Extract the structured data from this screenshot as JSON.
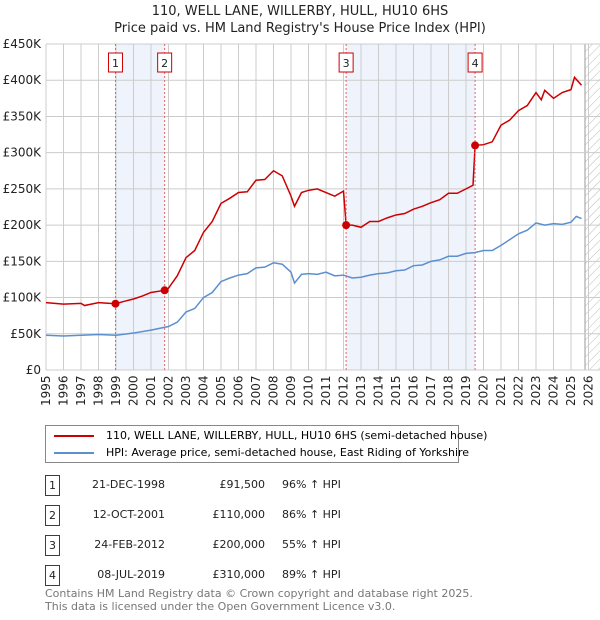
{
  "chart_data": {
    "type": "line",
    "title": "110, WELL LANE, WILLERBY, HULL, HU10 6HS",
    "subtitle": "Price paid vs. HM Land Registry's House Price Index (HPI)",
    "xlim": [
      1995,
      2026
    ],
    "ylim": [
      0,
      450000
    ],
    "y_ticks": [
      0,
      50000,
      100000,
      150000,
      200000,
      250000,
      300000,
      350000,
      400000,
      450000
    ],
    "y_tick_labels": [
      "£0",
      "£50K",
      "£100K",
      "£150K",
      "£200K",
      "£250K",
      "£300K",
      "£350K",
      "£400K",
      "£450K"
    ],
    "x_ticks": [
      "1995",
      "1996",
      "1997",
      "1998",
      "1999",
      "2000",
      "2001",
      "2002",
      "2003",
      "2004",
      "2005",
      "2006",
      "2007",
      "2008",
      "2009",
      "2010",
      "2011",
      "2012",
      "2013",
      "2014",
      "2015",
      "2016",
      "2017",
      "2018",
      "2019",
      "2020",
      "2021",
      "2022",
      "2023",
      "2024",
      "2025",
      "2026"
    ],
    "grid": true,
    "colors": {
      "property": "#cc0000",
      "hpi": "#5b8fd0",
      "shade": "#eef3fc"
    },
    "series": [
      {
        "name": "110, WELL LANE, WILLERBY, HULL, HU10 6HS (semi-detached house)",
        "x": [
          1995,
          1996,
          1997,
          1997.2,
          1998,
          1998.97,
          1999.5,
          2000,
          2000.5,
          2001,
          2001.78,
          2002,
          2002.5,
          2003,
          2003.5,
          2004,
          2004.5,
          2005,
          2005.5,
          2006,
          2006.5,
          2007,
          2007.5,
          2008,
          2008.5,
          2009,
          2009.2,
          2009.6,
          2010,
          2010.5,
          2011,
          2011.5,
          2012,
          2012.15,
          2012.5,
          2013,
          2013.5,
          2014,
          2014.5,
          2015,
          2015.5,
          2016,
          2016.5,
          2017,
          2017.5,
          2018,
          2018.5,
          2019,
          2019.4,
          2019.52,
          2020,
          2020.5,
          2021,
          2021.5,
          2022,
          2022.5,
          2023,
          2023.3,
          2023.5,
          2024,
          2024.5,
          2025,
          2025.2,
          2025.6
        ],
        "values": [
          93,
          91,
          92,
          89,
          93,
          91.5,
          95,
          98,
          102,
          107,
          110,
          113,
          130,
          155,
          165,
          190,
          205,
          230,
          237,
          245,
          246,
          262,
          263,
          275,
          268,
          240,
          226,
          245,
          248,
          250,
          245,
          240,
          247,
          200,
          200,
          197,
          205,
          205,
          210,
          214,
          216,
          222,
          226,
          231,
          235,
          244,
          244,
          250,
          255,
          310,
          311,
          315,
          338,
          345,
          358,
          365,
          383,
          373,
          386,
          375,
          383,
          387,
          404,
          393
        ]
      },
      {
        "name": "HPI: Average price, semi-detached house, East Riding of Yorkshire",
        "x": [
          1995,
          1996,
          1997,
          1998,
          1999,
          2000,
          2001,
          2002,
          2002.5,
          2003,
          2003.5,
          2004,
          2004.5,
          2005,
          2005.5,
          2006,
          2006.5,
          2007,
          2007.5,
          2008,
          2008.5,
          2009,
          2009.2,
          2009.6,
          2010,
          2010.5,
          2011,
          2011.5,
          2012,
          2012.5,
          2013,
          2013.5,
          2014,
          2014.5,
          2015,
          2015.5,
          2016,
          2016.5,
          2017,
          2017.5,
          2018,
          2018.5,
          2019,
          2019.5,
          2020,
          2020.5,
          2021,
          2021.5,
          2022,
          2022.5,
          2023,
          2023.5,
          2024,
          2024.5,
          2025,
          2025.3,
          2025.6
        ],
        "values": [
          48,
          47,
          48,
          49,
          48,
          51,
          55,
          60,
          66,
          80,
          85,
          100,
          107,
          122,
          127,
          131,
          133,
          141,
          142,
          148,
          146,
          135,
          120,
          132,
          133,
          132,
          135,
          130,
          131,
          127,
          128,
          131,
          133,
          134,
          137,
          138,
          144,
          145,
          150,
          152,
          157,
          157,
          161,
          162,
          165,
          165,
          172,
          180,
          188,
          193,
          203,
          200,
          202,
          201,
          204,
          212,
          209
        ]
      }
    ],
    "value_unit": "thousand GBP",
    "sales": [
      {
        "n": "1",
        "x": 1998.97,
        "value": 91.5,
        "date": "21-DEC-1998",
        "price": "£91,500",
        "hpi": "96% ↑ HPI"
      },
      {
        "n": "2",
        "x": 2001.78,
        "value": 110,
        "date": "12-OCT-2001",
        "price": "£110,000",
        "hpi": "86% ↑ HPI"
      },
      {
        "n": "3",
        "x": 2012.15,
        "value": 200,
        "date": "24-FEB-2012",
        "price": "£200,000",
        "hpi": "55% ↑ HPI"
      },
      {
        "n": "4",
        "x": 2019.52,
        "value": 310,
        "date": "08-JUL-2019",
        "price": "£310,000",
        "hpi": "89% ↑ HPI"
      }
    ],
    "forecast_from": 2025.8
  },
  "footer": {
    "line1": "Contains HM Land Registry data © Crown copyright and database right 2025.",
    "line2": "This data is licensed under the Open Government Licence v3.0."
  }
}
